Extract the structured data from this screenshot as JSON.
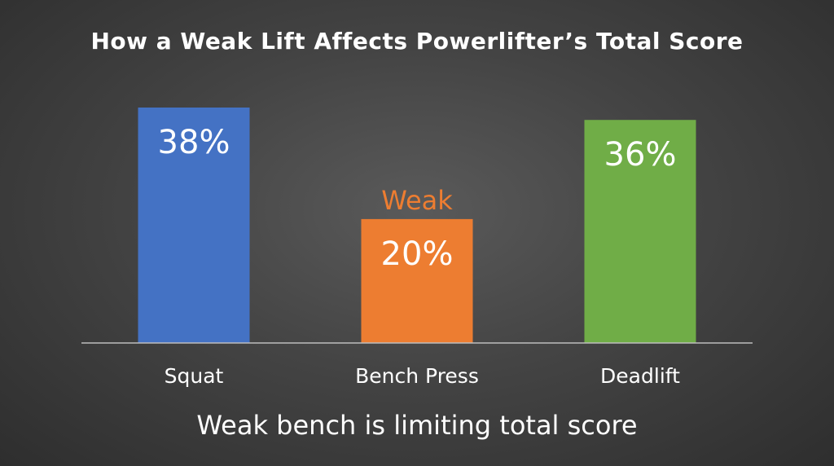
{
  "chart_data": {
    "type": "bar",
    "title": "How a Weak Lift Affects Powerlifter’s Total Score",
    "subtitle": "Weak bench is limiting total score",
    "categories": [
      "Squat",
      "Bench Press",
      "Deadlift"
    ],
    "values": [
      38,
      20,
      36
    ],
    "value_labels": [
      "38%",
      "20%",
      "36%"
    ],
    "colors": [
      "#4472C4",
      "#ED7D31",
      "#70AD47"
    ],
    "annotations": [
      {
        "category": "Bench Press",
        "text": "Weak",
        "color": "#ED7D31"
      }
    ],
    "xlabel": "",
    "ylabel": "",
    "ylim": [
      0,
      38
    ],
    "grid": false,
    "legend": "none"
  }
}
